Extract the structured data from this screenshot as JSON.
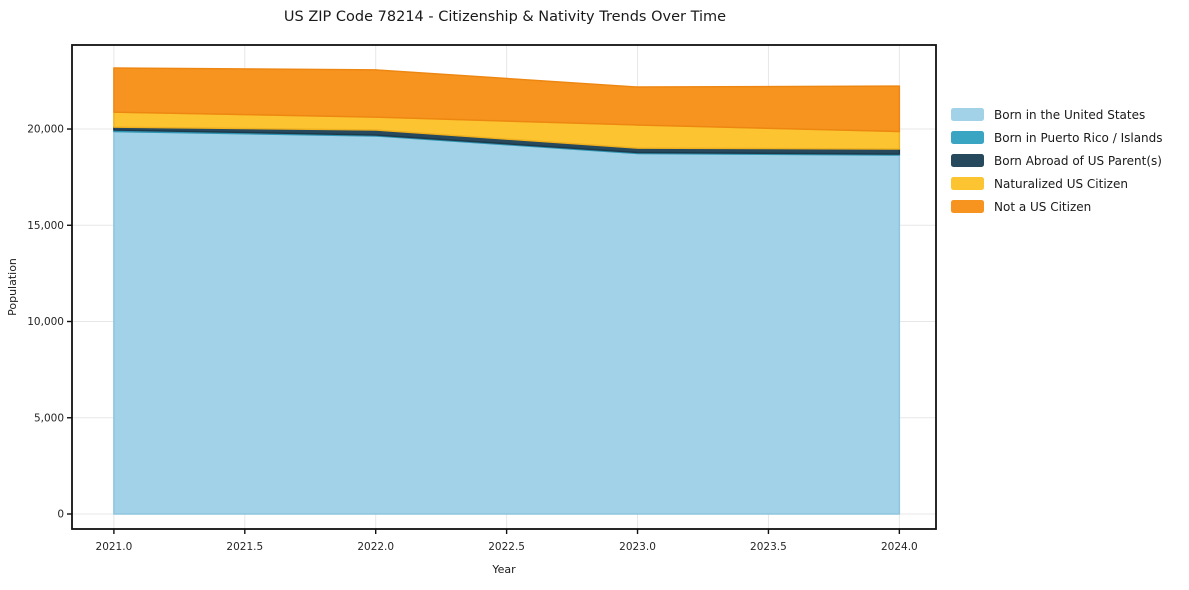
{
  "chart": {
    "title": "US ZIP Code 78214 - Citizenship & Nativity Trends Over Time",
    "xlabel": "Year",
    "ylabel": "Population"
  },
  "chart_data": {
    "type": "area",
    "stacked": true,
    "grid": true,
    "legend_position": "right-outside",
    "x": [
      2021,
      2022,
      2023,
      2024
    ],
    "series": [
      {
        "name": "Born in the United States",
        "color": "#a2d2e7",
        "edge": "#8fc5dd",
        "values": [
          19870,
          19640,
          18730,
          18650
        ]
      },
      {
        "name": "Born in Puerto Rico / Islands",
        "color": "#3aa5c3",
        "edge": "#3095b2",
        "values": [
          80,
          50,
          50,
          50
        ]
      },
      {
        "name": "Born Abroad of US Parent(s)",
        "color": "#27495e",
        "edge": "#1d3a4b",
        "values": [
          150,
          260,
          230,
          260
        ]
      },
      {
        "name": "Naturalized US Citizen",
        "color": "#fcc431",
        "edge": "#f0b120",
        "values": [
          780,
          670,
          1200,
          910
        ]
      },
      {
        "name": "Not a US Citizen",
        "color": "#f79420",
        "edge": "#ee8712",
        "values": [
          2290,
          2450,
          1970,
          2360
        ]
      }
    ],
    "x_ticks": [
      "2021.0",
      "2021.5",
      "2022.0",
      "2022.5",
      "2023.0",
      "2023.5",
      "2024.0"
    ],
    "x_tick_values": [
      2021,
      2021.5,
      2022,
      2022.5,
      2023,
      2023.5,
      2024
    ],
    "y_ticks": [
      "0",
      "5,000",
      "10,000",
      "15,000",
      "20,000"
    ],
    "y_tick_values": [
      0,
      5000,
      10000,
      15000,
      20000
    ],
    "xlim": [
      2020.84,
      2024.14
    ],
    "ylim": [
      -779,
      24365
    ],
    "colors": {
      "grid": "#e7e7e7",
      "spine": "#111111",
      "tick_label": "#262626",
      "text": "#1a1a1a",
      "background": "#ffffff"
    }
  }
}
